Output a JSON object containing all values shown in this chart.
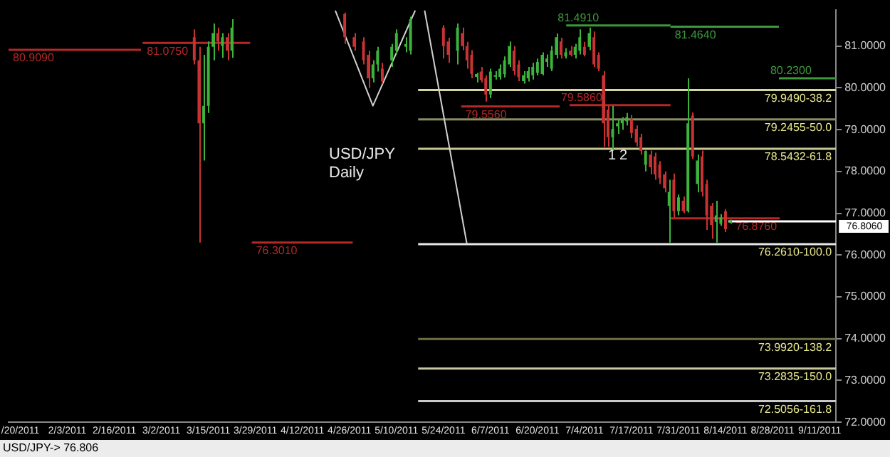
{
  "chart_data": {
    "type": "candlestick",
    "categories": [
      null,
      null,
      "/20/2011",
      null,
      null,
      null,
      null,
      null,
      null,
      null,
      null,
      null,
      "2/3/2011",
      null,
      null,
      null,
      null,
      null,
      null,
      null,
      null,
      null,
      "2/16/2011",
      null,
      null,
      null,
      null,
      null,
      null,
      null,
      null,
      null,
      "3/2/2011",
      null,
      null,
      null,
      null,
      null,
      null,
      null,
      null,
      null,
      "3/15/2011",
      null,
      null,
      null,
      null,
      null,
      null,
      null,
      null,
      null,
      "3/29/2011",
      null,
      null,
      null,
      null,
      null,
      null,
      null,
      null,
      null,
      "4/12/2011",
      null,
      null,
      null,
      null,
      null,
      null,
      null,
      null,
      null,
      "4/26/2011",
      null,
      null,
      null,
      null,
      null,
      null,
      null,
      null,
      null,
      "5/10/2011",
      null,
      null,
      null,
      null,
      null,
      null,
      null,
      null,
      null,
      "5/24/2011",
      null,
      null,
      null,
      null,
      null,
      null,
      null,
      null,
      null,
      "6/7/2011",
      null,
      null,
      null,
      null,
      null,
      null,
      null,
      null,
      null,
      "6/20/2011",
      null,
      null,
      null,
      null,
      null,
      null,
      null,
      null,
      null,
      "7/4/2011",
      null,
      null,
      null,
      null,
      null,
      null,
      null,
      null,
      null,
      "7/17/2011",
      null,
      null,
      null,
      null,
      null,
      null,
      null,
      null,
      null,
      "7/31/2011",
      null,
      null,
      null,
      null,
      null,
      null,
      null,
      null,
      null,
      "8/14/2011",
      null,
      null,
      null,
      null,
      null,
      null,
      null,
      null,
      null,
      "8/28/2011",
      null,
      null,
      null,
      null,
      null,
      null,
      null,
      null,
      null,
      "9/11/2011",
      null,
      null,
      null
    ],
    "ohlc": [
      null,
      null,
      null,
      null,
      null,
      null,
      null,
      null,
      null,
      null,
      null,
      null,
      null,
      null,
      null,
      null,
      null,
      null,
      null,
      null,
      null,
      null,
      null,
      null,
      null,
      null,
      null,
      null,
      null,
      null,
      null,
      null,
      null,
      null,
      null,
      null,
      null,
      null,
      null,
      [
        81.21,
        81.4,
        80.56,
        80.66
      ],
      [
        80.66,
        80.98,
        76.3,
        79.15
      ],
      [
        79.15,
        80.79,
        78.26,
        79.57
      ],
      [
        79.57,
        81.11,
        79.4,
        80.98
      ],
      [
        80.98,
        81.54,
        80.66,
        81.31
      ],
      [
        81.31,
        81.44,
        80.89,
        81.11
      ],
      [
        81.0,
        81.31,
        80.72,
        81.21
      ],
      [
        81.21,
        81.31,
        80.66,
        80.89
      ],
      [
        80.89,
        81.64,
        80.72,
        81.44
      ],
      null,
      null,
      null,
      null,
      null,
      null,
      null,
      null,
      null,
      null,
      null,
      null,
      null,
      null,
      null,
      null,
      null,
      null,
      null,
      null,
      null,
      null,
      null,
      [
        81.77,
        81.8,
        81.05,
        81.21
      ],
      null,
      [
        81.21,
        81.31,
        80.89,
        80.98
      ],
      null,
      [
        81.11,
        81.21,
        80.56,
        80.66
      ],
      [
        80.79,
        80.89,
        80.0,
        80.23
      ],
      [
        80.23,
        80.66,
        80.13,
        80.56
      ],
      [
        80.56,
        80.98,
        80.39,
        80.89
      ],
      [
        80.46,
        80.6,
        80.1,
        80.16
      ],
      null,
      [
        80.66,
        81.05,
        80.5,
        80.98
      ],
      [
        80.89,
        81.4,
        80.8,
        81.31
      ],
      null,
      [
        80.98,
        81.21,
        80.85,
        81.05
      ],
      [
        80.89,
        81.7,
        80.8,
        81.64
      ],
      null,
      null,
      null,
      null,
      null,
      null,
      [
        81.44,
        81.5,
        80.7,
        81.0
      ],
      [
        81.11,
        81.2,
        80.6,
        80.79
      ],
      null,
      [
        80.89,
        81.54,
        80.56,
        81.44
      ],
      [
        81.31,
        81.44,
        80.9,
        81.0
      ],
      [
        81.0,
        81.1,
        80.46,
        80.66
      ],
      [
        80.79,
        80.9,
        80.23,
        80.33
      ],
      [
        80.26,
        80.36,
        80.13,
        80.33
      ],
      [
        80.39,
        80.5,
        80.13,
        80.18
      ],
      [
        80.23,
        80.3,
        79.67,
        79.84
      ],
      [
        79.84,
        80.46,
        79.75,
        80.39
      ],
      [
        80.3,
        80.4,
        80.2,
        80.3
      ],
      [
        80.26,
        80.56,
        80.2,
        80.46
      ],
      [
        80.33,
        80.75,
        80.25,
        80.66
      ],
      [
        80.56,
        81.11,
        80.5,
        81.0
      ],
      [
        80.89,
        81.0,
        80.3,
        80.4
      ],
      [
        80.56,
        80.66,
        80.16,
        80.26
      ],
      [
        80.16,
        80.4,
        80.1,
        80.3
      ],
      [
        80.23,
        80.5,
        80.15,
        80.4
      ],
      [
        80.3,
        80.6,
        80.2,
        80.5
      ],
      [
        80.36,
        80.7,
        80.3,
        80.62
      ],
      [
        80.33,
        80.85,
        80.3,
        80.79
      ],
      [
        80.62,
        80.8,
        80.5,
        80.7
      ],
      [
        80.46,
        81.0,
        80.4,
        80.89
      ],
      [
        80.79,
        81.3,
        80.7,
        81.21
      ],
      [
        81.11,
        81.2,
        80.7,
        80.79
      ],
      [
        80.75,
        80.95,
        80.7,
        80.85
      ],
      [
        80.89,
        81.0,
        80.75,
        80.79
      ],
      [
        80.79,
        81.05,
        80.7,
        80.98
      ],
      [
        80.89,
        81.4,
        80.8,
        81.21
      ],
      [
        80.98,
        81.1,
        80.75,
        80.79
      ],
      [
        80.98,
        81.44,
        80.9,
        81.31
      ],
      [
        81.21,
        81.35,
        80.5,
        80.56
      ],
      [
        80.79,
        80.85,
        80.4,
        80.46
      ],
      [
        80.3,
        80.4,
        78.59,
        79.15
      ],
      [
        79.48,
        79.57,
        78.59,
        78.82
      ],
      [
        78.82,
        79.57,
        78.49,
        79.02
      ],
      [
        79.08,
        79.25,
        78.9,
        79.15
      ],
      [
        79.15,
        79.3,
        79.0,
        79.25
      ],
      [
        79.2,
        79.4,
        79.1,
        79.3
      ],
      [
        79.25,
        79.35,
        78.8,
        78.92
      ],
      [
        79.02,
        79.1,
        78.6,
        78.69
      ],
      [
        78.82,
        78.9,
        78.4,
        78.49
      ],
      [
        78.16,
        78.5,
        78.0,
        78.49
      ],
      [
        78.4,
        78.5,
        77.93,
        78.1
      ],
      [
        78.36,
        78.45,
        77.8,
        77.93
      ],
      [
        78.16,
        78.25,
        77.7,
        77.84
      ],
      [
        77.93,
        78.0,
        77.5,
        77.6
      ],
      [
        77.18,
        77.8,
        76.3,
        77.51
      ],
      [
        77.8,
        77.95,
        76.9,
        77.05
      ],
      [
        77.05,
        77.45,
        76.95,
        77.38
      ],
      [
        77.3,
        77.4,
        77.0,
        77.05
      ],
      [
        77.05,
        80.23,
        77.02,
        79.15
      ],
      [
        79.34,
        79.41,
        78.3,
        78.36
      ],
      [
        77.7,
        78.4,
        77.5,
        78.26
      ],
      [
        78.36,
        78.5,
        77.4,
        77.51
      ],
      [
        77.7,
        77.8,
        76.6,
        76.95
      ],
      [
        77.18,
        77.25,
        76.39,
        76.72
      ],
      [
        76.79,
        77.3,
        76.3,
        76.95
      ],
      [
        76.75,
        76.98,
        76.7,
        76.9
      ],
      [
        77.05,
        77.1,
        76.55,
        76.62
      ],
      [
        76.8,
        76.85,
        76.75,
        76.81
      ],
      null,
      null,
      null,
      null,
      null,
      null,
      null,
      null,
      null,
      null,
      null,
      null,
      null,
      null,
      null,
      null,
      null,
      null,
      null,
      null,
      null,
      null
    ],
    "series": [
      {
        "type": "line",
        "color": "#d0d0d0",
        "values": [
          null,
          null,
          null,
          null,
          null,
          null,
          null,
          null,
          null,
          null,
          null,
          null,
          null,
          null,
          null,
          null,
          null,
          null,
          null,
          null,
          null,
          null,
          null,
          null,
          null,
          null,
          null,
          null,
          null,
          null,
          null,
          null,
          null,
          null,
          null,
          null,
          null,
          null,
          null,
          null,
          null,
          null,
          null,
          null,
          null,
          null,
          null,
          null,
          null,
          null,
          null,
          null,
          null,
          null,
          null,
          null,
          null,
          null,
          null,
          null,
          null,
          null,
          null,
          null,
          null,
          null,
          null,
          null,
          null,
          81.85,
          null,
          null,
          null,
          null,
          null,
          null,
          null,
          79.57,
          null,
          null,
          null,
          null,
          null,
          null,
          null,
          null,
          81.85,
          null,
          null,
          null,
          null,
          null,
          null,
          null,
          null,
          null,
          null,
          null,
          null,
          null,
          null,
          null,
          null,
          null,
          null,
          null,
          null,
          null,
          null,
          null,
          null,
          null,
          null,
          null,
          null,
          null,
          null,
          null,
          null,
          null,
          null,
          null,
          null,
          null,
          null,
          null,
          null,
          null,
          null,
          null,
          null,
          null,
          null,
          null,
          null,
          null,
          null,
          null,
          null,
          null,
          null,
          null,
          null,
          null,
          null,
          null,
          null,
          null,
          null,
          null,
          null,
          null,
          null,
          null,
          null,
          null,
          null,
          null,
          null,
          null,
          null,
          null,
          null,
          null,
          null,
          null,
          null,
          null,
          null,
          null,
          null,
          null,
          null,
          null,
          null,
          null
        ]
      },
      {
        "type": "line",
        "color": "#d0d0d0",
        "values": [
          null,
          null,
          null,
          null,
          null,
          null,
          null,
          null,
          null,
          null,
          null,
          null,
          null,
          null,
          null,
          null,
          null,
          null,
          null,
          null,
          null,
          null,
          null,
          null,
          null,
          null,
          null,
          null,
          null,
          null,
          null,
          null,
          null,
          null,
          null,
          null,
          null,
          null,
          null,
          null,
          null,
          null,
          null,
          null,
          null,
          null,
          null,
          null,
          null,
          null,
          null,
          null,
          null,
          null,
          null,
          null,
          null,
          null,
          null,
          null,
          null,
          null,
          null,
          null,
          null,
          null,
          null,
          null,
          null,
          null,
          null,
          null,
          null,
          null,
          null,
          null,
          null,
          null,
          null,
          null,
          null,
          null,
          null,
          null,
          null,
          null,
          null,
          null,
          81.85,
          null,
          null,
          null,
          null,
          null,
          null,
          null,
          null,
          76.26,
          null,
          null,
          null,
          null,
          null,
          null,
          null,
          null,
          null,
          null,
          null,
          null,
          null,
          null,
          null,
          null,
          null,
          null,
          null,
          null,
          null,
          null,
          null,
          null,
          null,
          null,
          null,
          null,
          null,
          null,
          null,
          null,
          null,
          null,
          null,
          null,
          null,
          null,
          null,
          null,
          null,
          null,
          null,
          null,
          null,
          null,
          null,
          null,
          null,
          null,
          null,
          null,
          null,
          null,
          null,
          null,
          null,
          null,
          null,
          null,
          null,
          null,
          null,
          null,
          null,
          null,
          null,
          null,
          null,
          null,
          null,
          null,
          null,
          null,
          null,
          null,
          null,
          null
        ]
      }
    ],
    "ylim": [
      72,
      81.87
    ],
    "yticks": [
      {
        "value": 72,
        "label": "72.0000"
      },
      {
        "value": 73,
        "label": "73.0000"
      },
      {
        "value": 74,
        "label": "74.0000"
      },
      {
        "value": 75,
        "label": "75.0000"
      },
      {
        "value": 76,
        "label": "76.0000"
      },
      {
        "value": 77,
        "label": "77.0000"
      },
      {
        "value": 78,
        "label": "78.0000"
      },
      {
        "value": 79,
        "label": "79.0000"
      },
      {
        "value": 80,
        "label": "80.0000"
      },
      {
        "value": 81,
        "label": "81.0000"
      }
    ],
    "ref_lines": [
      {
        "axis": "y",
        "value": 79.949,
        "label": "79.9490-38.2",
        "color": "#d6d6a0"
      },
      {
        "axis": "y",
        "value": 79.2455,
        "label": "79.2455-50.0",
        "color": "#8c8c64"
      },
      {
        "axis": "y",
        "value": 78.5432,
        "label": "78.5432-61.8",
        "color": "#c8c896"
      },
      {
        "axis": "y",
        "value": 76.261,
        "label": "76.2610-100.0",
        "color": "#e6e6e6"
      },
      {
        "axis": "y",
        "value": 73.992,
        "label": "73.9920-138.2",
        "color": "#6e6e46"
      },
      {
        "axis": "y",
        "value": 73.2835,
        "label": "73.2835-150.0",
        "color": "#c8c8a0"
      },
      {
        "axis": "y",
        "value": 72.5056,
        "label": "72.5056-161.8",
        "color": "#c8c8c8"
      },
      {
        "axis": "y",
        "value": 80.909,
        "label": "80.9090",
        "color": "#b42828"
      },
      {
        "axis": "y",
        "value": 81.075,
        "label": "81.0750",
        "color": "#b42828"
      },
      {
        "axis": "y",
        "value": 76.301,
        "label": "76.3010",
        "color": "#b42828"
      },
      {
        "axis": "y",
        "value": 79.556,
        "label": "79.5560",
        "color": "#b42828"
      },
      {
        "axis": "y",
        "value": 79.586,
        "label": "79.5860",
        "color": "#b42828"
      },
      {
        "axis": "y",
        "value": 81.491,
        "label": "81.4910",
        "color": "#3c9a3c"
      },
      {
        "axis": "y",
        "value": 81.464,
        "label": "81.4640",
        "color": "#3c9a3c"
      },
      {
        "axis": "y",
        "value": 80.23,
        "label": "80.2300",
        "color": "#3c9a3c"
      },
      {
        "axis": "y",
        "value": 76.876,
        "label": "76.8760",
        "color": "#b42828"
      },
      {
        "axis": "y",
        "value": 76.806,
        "label": "76.8060",
        "color": "#ffffff"
      }
    ],
    "annotations": [
      "USD/JPY",
      "Daily",
      "1",
      "2",
      "USD/JPY-> 76.806"
    ]
  }
}
